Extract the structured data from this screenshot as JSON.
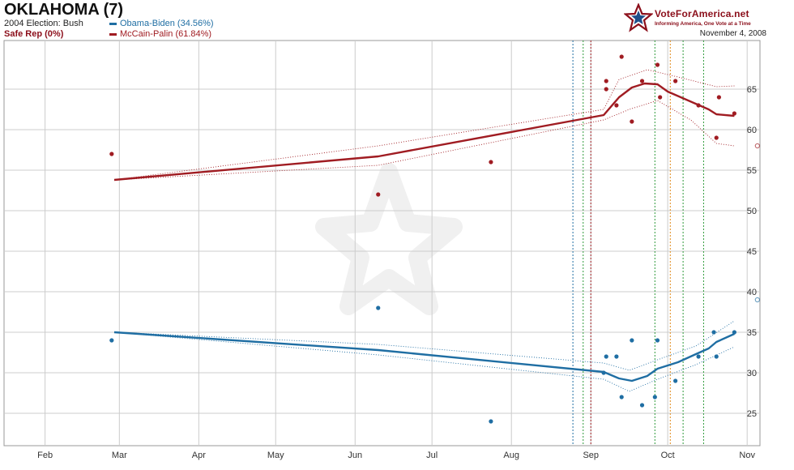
{
  "header": {
    "title": "OKLAHOMA (7)",
    "prev_election": "2004 Election: Bush",
    "status": "Safe Rep (0%)",
    "date": "November 4, 2008"
  },
  "branding": {
    "name": "VoteForAmerica.net",
    "tagline": "Informing America, One Vote at a Time"
  },
  "colors": {
    "rep": "#a01c22",
    "dem": "#1f6ea3",
    "grid": "#cccccc",
    "status": "#8b0e1a"
  },
  "chart_data": {
    "type": "line",
    "x_ticks": [
      "Feb",
      "Mar",
      "Apr",
      "May",
      "Jun",
      "Jul",
      "Aug",
      "Sep",
      "Oct",
      "Nov"
    ],
    "y_ticks": [
      25,
      30,
      35,
      40,
      45,
      50,
      55,
      60,
      65
    ],
    "ylim": [
      21,
      71
    ],
    "xlim": [
      "2008-01-16",
      "2008-11-06"
    ],
    "series": [
      {
        "name": "Obama-Biden (34.56%)",
        "color": "#1f6ea3",
        "trend": [
          [
            "2008-02-28",
            35.0
          ],
          [
            "2008-06-10",
            32.8
          ],
          [
            "2008-09-06",
            30.1
          ],
          [
            "2008-09-12",
            29.3
          ],
          [
            "2008-09-17",
            29.0
          ],
          [
            "2008-09-23",
            29.6
          ],
          [
            "2008-09-27",
            30.5
          ],
          [
            "2008-10-05",
            31.3
          ],
          [
            "2008-10-12",
            32.3
          ],
          [
            "2008-10-17",
            33.0
          ],
          [
            "2008-10-20",
            33.8
          ],
          [
            "2008-10-27",
            34.8
          ]
        ],
        "band_upper": [
          [
            "2008-02-28",
            35.0
          ],
          [
            "2008-06-10",
            33.5
          ],
          [
            "2008-09-06",
            31.2
          ],
          [
            "2008-09-16",
            30.3
          ],
          [
            "2008-09-27",
            31.6
          ],
          [
            "2008-10-12",
            33.3
          ],
          [
            "2008-10-27",
            36.4
          ]
        ],
        "band_lower": [
          [
            "2008-02-28",
            35.0
          ],
          [
            "2008-06-10",
            32.2
          ],
          [
            "2008-09-06",
            29.2
          ],
          [
            "2008-09-16",
            27.7
          ],
          [
            "2008-09-27",
            29.2
          ],
          [
            "2008-10-12",
            31.0
          ],
          [
            "2008-10-27",
            33.2
          ]
        ],
        "polls": [
          [
            "2008-02-27",
            34
          ],
          [
            "2008-06-10",
            38
          ],
          [
            "2008-07-24",
            24
          ],
          [
            "2008-09-06",
            30
          ],
          [
            "2008-09-07",
            32
          ],
          [
            "2008-09-11",
            32
          ],
          [
            "2008-09-13",
            27
          ],
          [
            "2008-09-17",
            34
          ],
          [
            "2008-09-21",
            26
          ],
          [
            "2008-09-26",
            27
          ],
          [
            "2008-09-27",
            34
          ],
          [
            "2008-10-04",
            29
          ],
          [
            "2008-10-13",
            32
          ],
          [
            "2008-10-19",
            35
          ],
          [
            "2008-10-20",
            32
          ],
          [
            "2008-10-27",
            35
          ]
        ],
        "final_marker": [
          "2008-11-05",
          39
        ]
      },
      {
        "name": "McCain-Palin (61.84%)",
        "color": "#a01c22",
        "trend": [
          [
            "2008-02-28",
            53.8
          ],
          [
            "2008-06-10",
            56.7
          ],
          [
            "2008-09-06",
            61.8
          ],
          [
            "2008-09-12",
            64.0
          ],
          [
            "2008-09-17",
            65.2
          ],
          [
            "2008-09-22",
            65.7
          ],
          [
            "2008-09-27",
            65.6
          ],
          [
            "2008-10-01",
            64.7
          ],
          [
            "2008-10-17",
            62.5
          ],
          [
            "2008-10-20",
            61.9
          ],
          [
            "2008-10-27",
            61.7
          ]
        ],
        "band_upper": [
          [
            "2008-02-28",
            53.8
          ],
          [
            "2008-06-10",
            58.0
          ],
          [
            "2008-09-06",
            62.5
          ],
          [
            "2008-09-12",
            66.2
          ],
          [
            "2008-09-23",
            67.4
          ],
          [
            "2008-10-05",
            66.5
          ],
          [
            "2008-10-20",
            65.3
          ],
          [
            "2008-10-27",
            65.4
          ]
        ],
        "band_lower": [
          [
            "2008-02-28",
            53.8
          ],
          [
            "2008-06-10",
            55.6
          ],
          [
            "2008-09-06",
            61.2
          ],
          [
            "2008-09-16",
            62.5
          ],
          [
            "2008-09-27",
            63.6
          ],
          [
            "2008-10-10",
            61.2
          ],
          [
            "2008-10-20",
            58.3
          ],
          [
            "2008-10-27",
            58.0
          ]
        ],
        "polls": [
          [
            "2008-02-27",
            57
          ],
          [
            "2008-06-10",
            52
          ],
          [
            "2008-07-24",
            56
          ],
          [
            "2008-09-07",
            66
          ],
          [
            "2008-09-07",
            65
          ],
          [
            "2008-09-11",
            63
          ],
          [
            "2008-09-13",
            69
          ],
          [
            "2008-09-17",
            61
          ],
          [
            "2008-09-21",
            66
          ],
          [
            "2008-09-27",
            68
          ],
          [
            "2008-09-28",
            64
          ],
          [
            "2008-10-04",
            66
          ],
          [
            "2008-10-13",
            63
          ],
          [
            "2008-10-20",
            59
          ],
          [
            "2008-10-21",
            64
          ],
          [
            "2008-10-27",
            62
          ]
        ],
        "final_marker": [
          "2008-11-05",
          58
        ]
      }
    ],
    "event_lines": [
      {
        "date": "2008-08-25",
        "color": "#1f6ea3"
      },
      {
        "date": "2008-08-29",
        "color": "#2e9a3a"
      },
      {
        "date": "2008-09-01",
        "color": "#a01c22"
      },
      {
        "date": "2008-09-26",
        "color": "#2e9a3a"
      },
      {
        "date": "2008-10-02",
        "color": "#e08a1a"
      },
      {
        "date": "2008-10-07",
        "color": "#2e9a3a"
      },
      {
        "date": "2008-10-15",
        "color": "#2e9a3a"
      }
    ],
    "grid": true
  }
}
